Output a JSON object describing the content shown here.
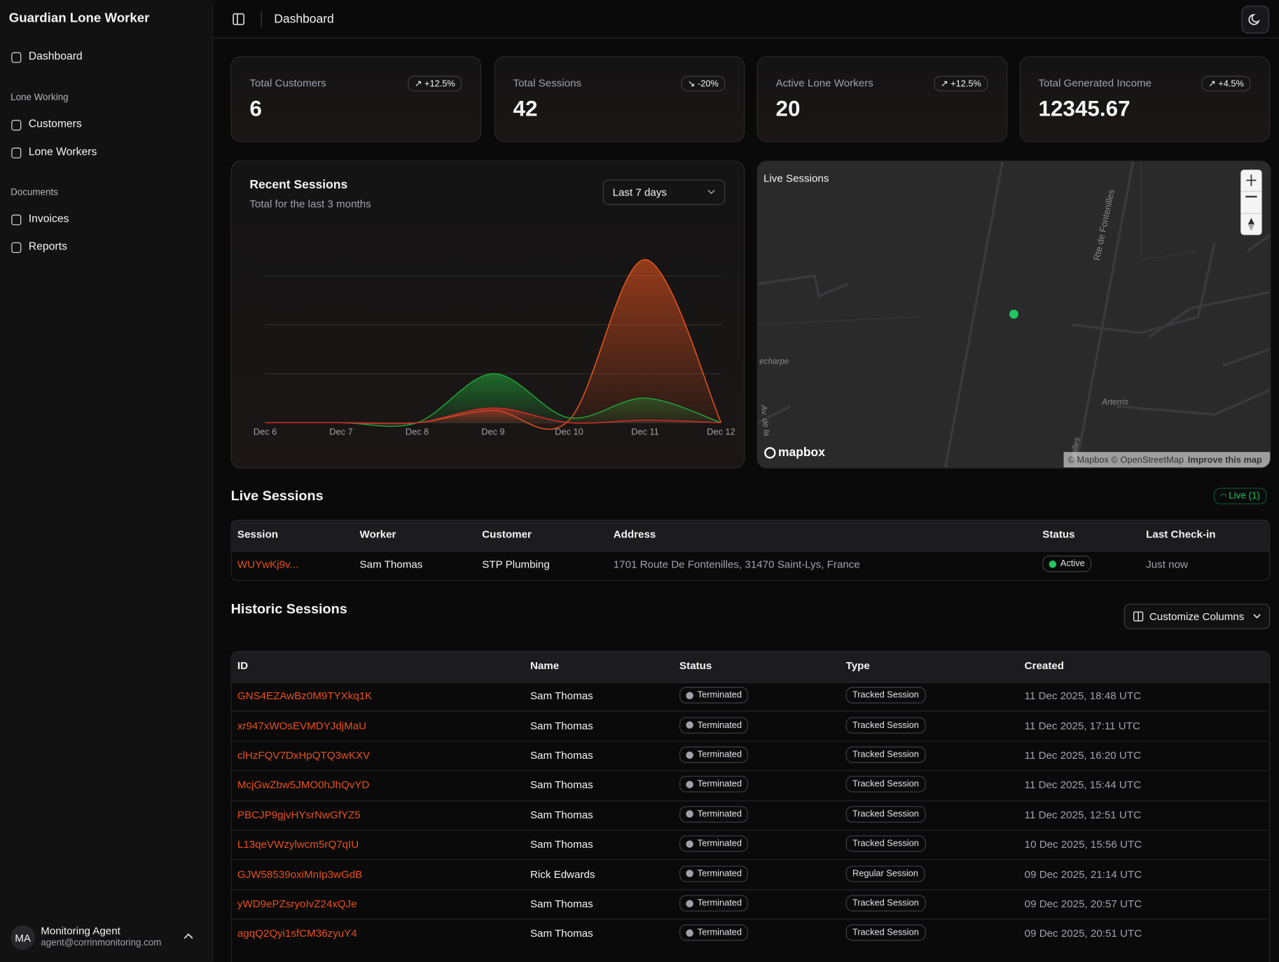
{
  "sidebar": {
    "app_title": "Guardian Lone Worker",
    "nav": [
      "Dashboard"
    ],
    "sections": [
      {
        "title": "Lone Working",
        "items": [
          "Customers",
          "Lone Workers"
        ]
      },
      {
        "title": "Documents",
        "items": [
          "Invoices",
          "Reports"
        ]
      }
    ],
    "user": {
      "initials": "MA",
      "name": "Monitoring Agent",
      "email": "agent@corrinmonitoring.com"
    }
  },
  "header": {
    "title": "Dashboard"
  },
  "stats": [
    {
      "label": "Total Customers",
      "value": 6,
      "change": "+12.5%"
    },
    {
      "label": "Total Sessions",
      "value": 42,
      "change": "-20%"
    },
    {
      "label": "Active Lone Workers",
      "value": 20,
      "change": "+12.5%"
    },
    {
      "label": "Total Generated Income",
      "value": 12345.67,
      "change": "+4.5%"
    }
  ],
  "chart_filter": "Last 7 days",
  "chart_data": {
    "type": "area",
    "title": "Recent Sessions",
    "subtitle": "Total for the last 3 months",
    "categories": [
      "Dec 6",
      "Dec 7",
      "Dec 8",
      "Dec 9",
      "Dec 10",
      "Dec 11",
      "Dec 12"
    ],
    "series": [
      {
        "color": "#e8541e",
        "values": [
          0,
          0,
          0,
          0.25,
          0.05,
          3.33,
          0
        ]
      },
      {
        "color": "#22a33a",
        "values": [
          0,
          0,
          0,
          1,
          0.1,
          0.5,
          0
        ]
      },
      {
        "color": "#d42a2a",
        "values": [
          0,
          0,
          0,
          0.3,
          0,
          0.05,
          0
        ]
      }
    ],
    "ylim": [
      0,
      3.5
    ],
    "yticks": [
      0,
      1,
      2,
      3
    ],
    "grid": true
  },
  "map": {
    "title": "Live Sessions",
    "labels": [
      "Rte de Fontenilles",
      "echarpe",
      "Arterris",
      "Av. de la",
      "enilles"
    ],
    "brand": "mapbox",
    "attribution": "© Mapbox © OpenStreetMap",
    "improve": "Improve this map"
  },
  "live_sessions": {
    "title": "Live Sessions",
    "badge": "Live (1)",
    "columns": [
      "Session",
      "Worker",
      "Customer",
      "Address",
      "Status",
      "Last Check-in"
    ],
    "rows": [
      [
        "WUYwKj9v...",
        "Sam Thomas",
        "STP Plumbing",
        "1701 Route De Fontenilles, 31470 Saint-Lys, France",
        "Active",
        "Just now"
      ]
    ]
  },
  "historic_sessions": {
    "title": "Historic Sessions",
    "button": "Customize Columns",
    "columns": [
      "ID",
      "Name",
      "Status",
      "Type",
      "Created"
    ],
    "rows": [
      [
        "GNS4EZAwBz0M9TYXkq1K",
        "Sam Thomas",
        "Terminated",
        "Tracked Session",
        "11 Dec 2025, 18:48 UTC"
      ],
      [
        "xr947xWOsEVMDYJdjMaU",
        "Sam Thomas",
        "Terminated",
        "Tracked Session",
        "11 Dec 2025, 17:11 UTC"
      ],
      [
        "clHzFQV7DxHpQTQ3wKXV",
        "Sam Thomas",
        "Terminated",
        "Tracked Session",
        "11 Dec 2025, 16:20 UTC"
      ],
      [
        "McjGwZbw5JMO0hJhQvYD",
        "Sam Thomas",
        "Terminated",
        "Tracked Session",
        "11 Dec 2025, 15:44 UTC"
      ],
      [
        "PBCJP9gjvHYsrNwGfYZ5",
        "Sam Thomas",
        "Terminated",
        "Tracked Session",
        "11 Dec 2025, 12:51 UTC"
      ],
      [
        "L13qeVWzylwcm5rQ7qIU",
        "Sam Thomas",
        "Terminated",
        "Tracked Session",
        "10 Dec 2025, 15:56 UTC"
      ],
      [
        "GJW58539oxiMnIp3wGdB",
        "Rick Edwards",
        "Terminated",
        "Regular Session",
        "09 Dec 2025, 21:14 UTC"
      ],
      [
        "yWD9ePZsryoIvZ24xQJe",
        "Sam Thomas",
        "Terminated",
        "Tracked Session",
        "09 Dec 2025, 20:57 UTC"
      ],
      [
        "agqQ2Qyi1sfCM36zyuY4",
        "Sam Thomas",
        "Terminated",
        "Tracked Session",
        "09 Dec 2025, 20:51 UTC"
      ]
    ]
  }
}
